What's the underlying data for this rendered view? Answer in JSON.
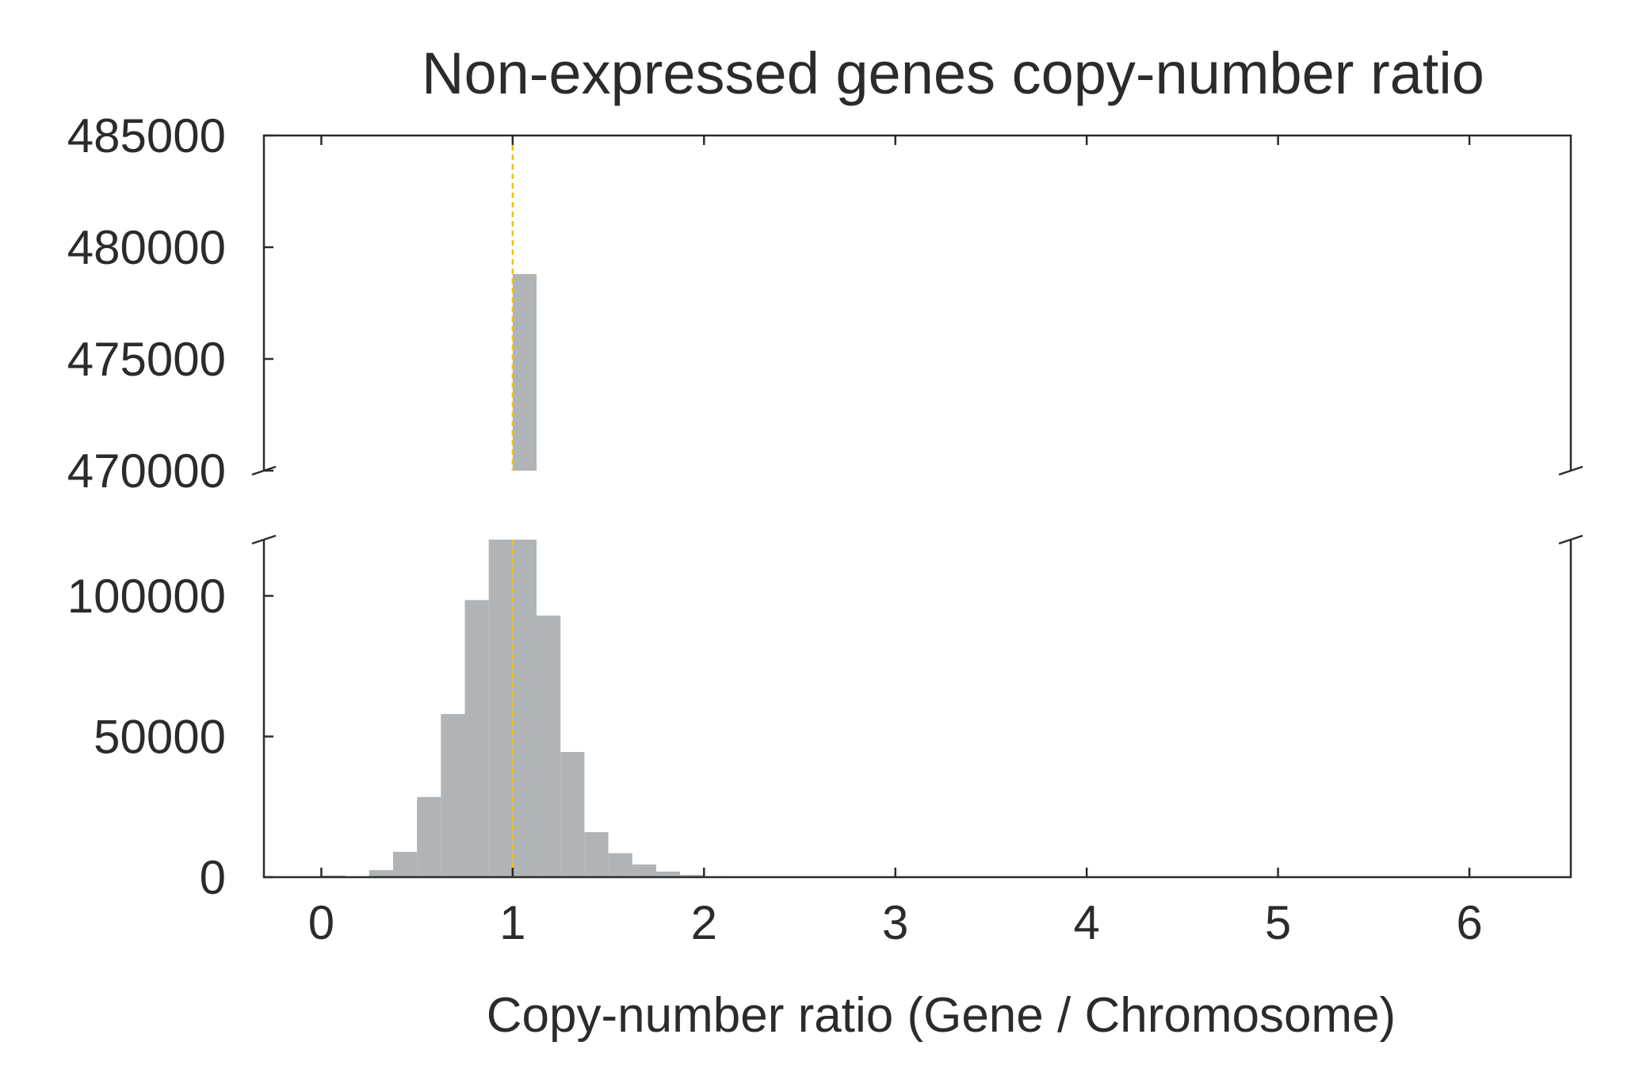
{
  "chart_data": {
    "type": "bar",
    "title": "Non-expressed genes copy-number ratio",
    "xlabel": "Copy-number ratio (Gene / Chromosome)",
    "ylabel": "",
    "xlim": [
      -0.3,
      6.53
    ],
    "xticks": [
      "0",
      "1",
      "2",
      "3",
      "4",
      "5",
      "6"
    ],
    "broken_y_axis": {
      "upper_range": [
        470000,
        485000
      ],
      "upper_ticks": [
        "470000",
        "475000",
        "480000",
        "485000"
      ],
      "lower_range": [
        0,
        120000
      ],
      "lower_ticks": [
        "0",
        "50000",
        "100000"
      ]
    },
    "bin_width": 0.125,
    "series": [
      {
        "bins_start": [
          0.0,
          0.125,
          0.25,
          0.375,
          0.5,
          0.625,
          0.75,
          0.875,
          1.0,
          1.125,
          1.25,
          1.375,
          1.5,
          1.625,
          1.75,
          1.875,
          2.0
        ],
        "values": [
          600,
          200,
          2500,
          9000,
          28500,
          58000,
          98500,
          120000,
          478800,
          93000,
          44500,
          16000,
          8500,
          4500,
          2000,
          800,
          300
        ]
      }
    ],
    "reference_line": {
      "x": 1.0,
      "color": "#f2c200",
      "style": "dashed"
    },
    "bar_color": "#b0b4b6",
    "grid": false,
    "legend": "none"
  }
}
